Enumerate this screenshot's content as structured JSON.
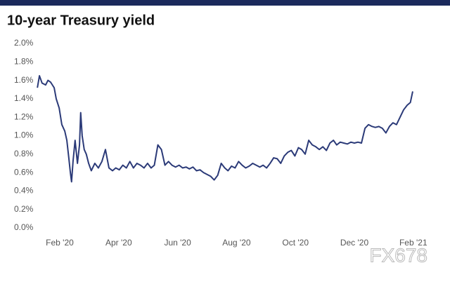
{
  "chart_data": {
    "type": "line",
    "title": "10-year Treasury yield",
    "watermark": "FX678",
    "xlim": [
      0,
      13.1
    ],
    "ylim": [
      0,
      2
    ],
    "xticks": [
      {
        "value": 1,
        "label": "Feb '20"
      },
      {
        "value": 3,
        "label": "Apr '20"
      },
      {
        "value": 5,
        "label": "Jun '20"
      },
      {
        "value": 7,
        "label": "Aug '20"
      },
      {
        "value": 9,
        "label": "Oct '20"
      },
      {
        "value": 11,
        "label": "Dec '20"
      },
      {
        "value": 13,
        "label": "Feb '21"
      }
    ],
    "yticks": [
      {
        "value": 0,
        "label": "0.0%"
      },
      {
        "value": 0.2,
        "label": "0.2%"
      },
      {
        "value": 0.4,
        "label": "0.4%"
      },
      {
        "value": 0.6,
        "label": "0.6%"
      },
      {
        "value": 0.8,
        "label": "0.8%"
      },
      {
        "value": 1.0,
        "label": "1.0%"
      },
      {
        "value": 1.2,
        "label": "1.2%"
      },
      {
        "value": 1.4,
        "label": "1.4%"
      },
      {
        "value": 1.6,
        "label": "1.6%"
      },
      {
        "value": 1.8,
        "label": "1.8%"
      },
      {
        "value": 2.0,
        "label": "2.0%"
      }
    ],
    "grid": false,
    "series": [
      {
        "color": "#2b3a78",
        "x": [
          0.24,
          0.31,
          0.4,
          0.52,
          0.6,
          0.69,
          0.81,
          0.88,
          0.98,
          1.07,
          1.17,
          1.24,
          1.31,
          1.36,
          1.4,
          1.45,
          1.52,
          1.6,
          1.67,
          1.71,
          1.76,
          1.83,
          1.9,
          1.98,
          2.07,
          2.19,
          2.31,
          2.43,
          2.55,
          2.67,
          2.79,
          2.9,
          3.02,
          3.14,
          3.26,
          3.38,
          3.5,
          3.62,
          3.74,
          3.86,
          3.98,
          4.1,
          4.21,
          4.33,
          4.45,
          4.57,
          4.69,
          4.81,
          4.93,
          5.05,
          5.17,
          5.29,
          5.4,
          5.52,
          5.64,
          5.76,
          5.88,
          6.0,
          6.12,
          6.24,
          6.36,
          6.48,
          6.6,
          6.71,
          6.83,
          6.95,
          7.07,
          7.19,
          7.31,
          7.43,
          7.55,
          7.67,
          7.79,
          7.9,
          8.02,
          8.14,
          8.26,
          8.38,
          8.5,
          8.62,
          8.74,
          8.86,
          8.98,
          9.1,
          9.21,
          9.33,
          9.45,
          9.57,
          9.69,
          9.81,
          9.93,
          10.05,
          10.17,
          10.29,
          10.4,
          10.52,
          10.64,
          10.76,
          10.88,
          11.0,
          11.12,
          11.24,
          11.36,
          11.48,
          11.6,
          11.71,
          11.83,
          11.95,
          12.07,
          12.19,
          12.31,
          12.43,
          12.55,
          12.67,
          12.79,
          12.9,
          12.98
        ],
        "values": [
          1.52,
          1.65,
          1.57,
          1.55,
          1.6,
          1.58,
          1.52,
          1.4,
          1.3,
          1.12,
          1.05,
          0.95,
          0.75,
          0.6,
          0.5,
          0.72,
          0.95,
          0.7,
          0.9,
          1.25,
          1.0,
          0.85,
          0.8,
          0.7,
          0.62,
          0.7,
          0.65,
          0.72,
          0.85,
          0.65,
          0.62,
          0.65,
          0.63,
          0.68,
          0.65,
          0.72,
          0.65,
          0.7,
          0.68,
          0.65,
          0.7,
          0.65,
          0.68,
          0.9,
          0.85,
          0.68,
          0.72,
          0.68,
          0.66,
          0.68,
          0.65,
          0.66,
          0.64,
          0.66,
          0.62,
          0.63,
          0.6,
          0.58,
          0.56,
          0.52,
          0.57,
          0.7,
          0.65,
          0.62,
          0.67,
          0.65,
          0.72,
          0.68,
          0.65,
          0.67,
          0.7,
          0.68,
          0.66,
          0.68,
          0.65,
          0.7,
          0.76,
          0.75,
          0.7,
          0.78,
          0.82,
          0.84,
          0.78,
          0.87,
          0.85,
          0.8,
          0.95,
          0.9,
          0.88,
          0.85,
          0.88,
          0.84,
          0.92,
          0.95,
          0.9,
          0.93,
          0.92,
          0.91,
          0.93,
          0.92,
          0.93,
          0.92,
          1.08,
          1.12,
          1.1,
          1.09,
          1.1,
          1.08,
          1.03,
          1.1,
          1.14,
          1.12,
          1.2,
          1.28,
          1.33,
          1.36,
          1.48
        ]
      }
    ]
  }
}
